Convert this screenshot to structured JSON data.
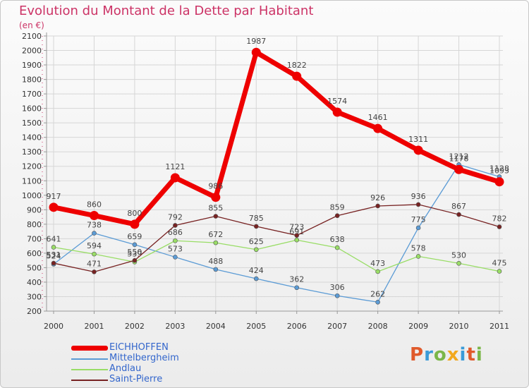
{
  "header": {
    "title": "Evolution du Montant de la Dette par Habitant",
    "subtitle": "(en €)"
  },
  "logo": {
    "text": "Proxiti",
    "colors": [
      "#e05a2b",
      "#3a9bd8",
      "#7ab648",
      "#f2a81d",
      "#3a9bd8",
      "#e05a2b",
      "#7ab648"
    ]
  },
  "chart_data": {
    "type": "line",
    "categories": [
      "2000",
      "2001",
      "2002",
      "2003",
      "2004",
      "2005",
      "2006",
      "2007",
      "2008",
      "2009",
      "2010",
      "2011"
    ],
    "ylim": [
      200,
      2100
    ],
    "yticks": [
      "200",
      "300",
      "400",
      "500",
      "600",
      "700",
      "800",
      "900",
      "1000",
      "1100",
      "1200",
      "1300",
      "1400",
      "1500",
      "1600",
      "1700",
      "1800",
      "1900",
      "2000",
      "2100"
    ],
    "grid": true,
    "legend_position": "bottom-left",
    "series": [
      {
        "name": "EICHHOFFEN",
        "color": "#ee0000",
        "thick": true,
        "values": [
          917,
          860,
          800,
          1121,
          986,
          1987,
          1822,
          1574,
          1461,
          1311,
          1178,
          1093
        ]
      },
      {
        "name": "Mittelbergheim",
        "color": "#5b9bd5",
        "thick": false,
        "values": [
          524,
          738,
          659,
          573,
          488,
          424,
          362,
          306,
          262,
          775,
          1212,
          1128
        ]
      },
      {
        "name": "Andlau",
        "color": "#99dd66",
        "thick": false,
        "values": [
          641,
          594,
          539,
          686,
          672,
          625,
          691,
          638,
          473,
          578,
          530,
          475
        ]
      },
      {
        "name": "Saint-Pierre",
        "color": "#772222",
        "thick": false,
        "values": [
          531,
          471,
          550,
          792,
          855,
          785,
          723,
          859,
          926,
          936,
          867,
          782
        ]
      }
    ]
  }
}
